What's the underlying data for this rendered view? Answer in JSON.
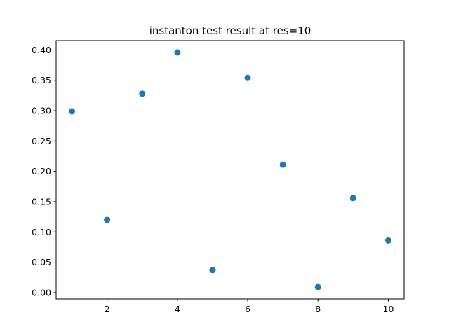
{
  "chart_data": {
    "type": "scatter",
    "title": "instanton test result at res=10",
    "xlabel": "",
    "ylabel": "",
    "x": [
      1,
      2,
      3,
      4,
      5,
      6,
      7,
      8,
      9,
      10
    ],
    "y": [
      0.299,
      0.12,
      0.328,
      0.396,
      0.037,
      0.354,
      0.211,
      0.009,
      0.156,
      0.086
    ],
    "xlim": [
      0.55,
      10.45
    ],
    "ylim": [
      -0.0105,
      0.4155
    ],
    "x_ticks": [
      2,
      4,
      6,
      8,
      10
    ],
    "x_tick_labels": [
      "2",
      "4",
      "6",
      "8",
      "10"
    ],
    "y_ticks": [
      0.0,
      0.05,
      0.1,
      0.15,
      0.2,
      0.25,
      0.3,
      0.35,
      0.4
    ],
    "y_tick_labels": [
      "0.00",
      "0.05",
      "0.10",
      "0.15",
      "0.20",
      "0.25",
      "0.30",
      "0.35",
      "0.40"
    ],
    "grid": false,
    "legend": "none",
    "marker_color": "#1f77b4"
  }
}
